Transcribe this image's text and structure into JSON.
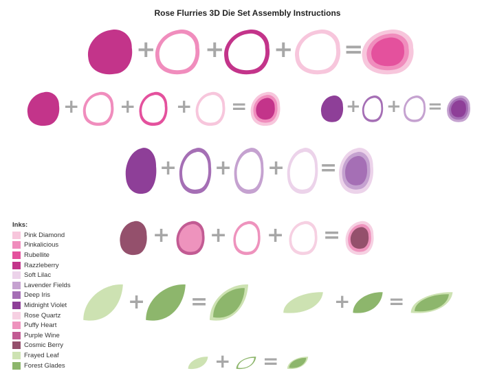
{
  "title": "Rose Flurries 3D Die Set Assembly Instructions",
  "operators": {
    "plus": "+",
    "equals": "="
  },
  "legend": {
    "heading": "Inks:",
    "items": [
      {
        "label": "Pink Diamond",
        "color": "#f7c6dc"
      },
      {
        "label": "Pinkalicious",
        "color": "#f08dbd"
      },
      {
        "label": "Rubellite",
        "color": "#e4519d"
      },
      {
        "label": "Razzleberry",
        "color": "#c3348a"
      },
      {
        "label": "Soft Lilac",
        "color": "#ecd3ea"
      },
      {
        "label": "Lavender Fields",
        "color": "#c5a2d0"
      },
      {
        "label": "Deep Iris",
        "color": "#a56fb5"
      },
      {
        "label": "Midnight Violet",
        "color": "#8e3f98"
      },
      {
        "label": "Rose Quartz",
        "color": "#f6d0e2"
      },
      {
        "label": "Puffy Heart",
        "color": "#ee93bd"
      },
      {
        "label": "Purple Wine",
        "color": "#c25b93"
      },
      {
        "label": "Cosmic Berry",
        "color": "#94506c"
      },
      {
        "label": "Frayed Leaf",
        "color": "#cde2b2"
      },
      {
        "label": "Forest Glades",
        "color": "#8db66c"
      }
    ]
  }
}
